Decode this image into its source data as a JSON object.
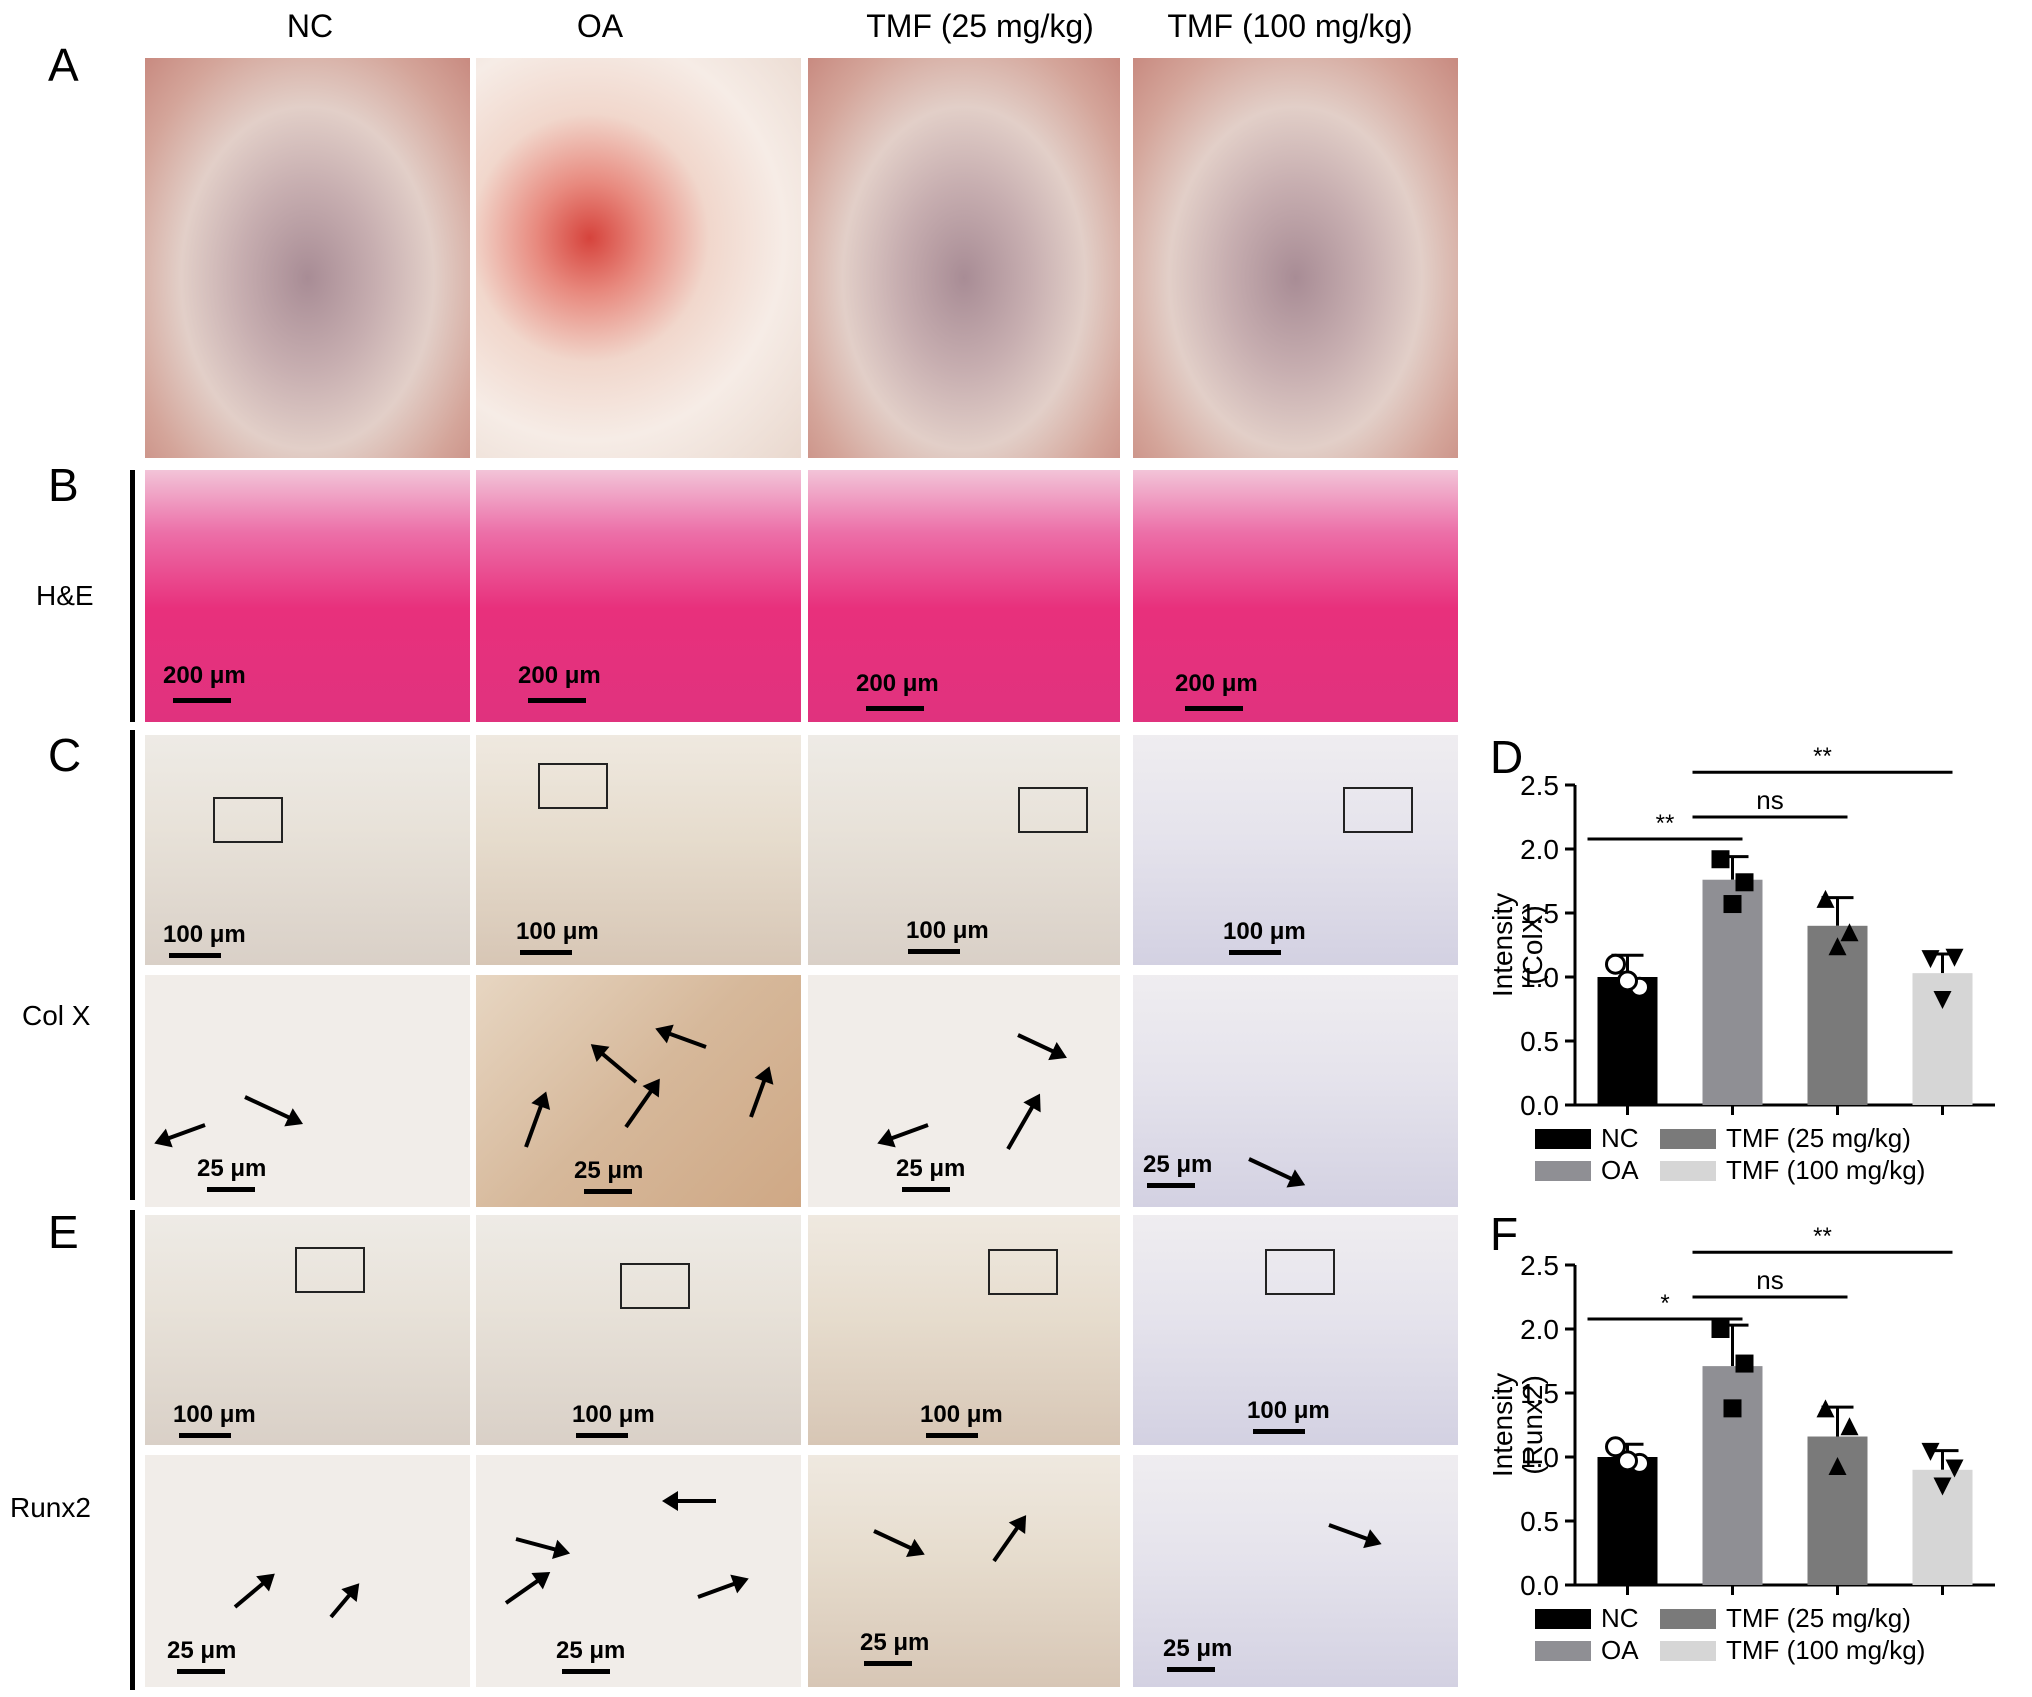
{
  "column_headers": [
    "NC",
    "OA",
    "TMF (25 mg/kg)",
    "TMF (100 mg/kg)"
  ],
  "panel_letters": {
    "A": "A",
    "B": "B",
    "C": "C",
    "D": "D",
    "E": "E",
    "F": "F"
  },
  "row_labels": {
    "he": "H&E",
    "colx": "Col X",
    "runx2": "Runx2"
  },
  "scale_bars": {
    "he": "200 μm",
    "overview": "100 μm",
    "zoom": "25 μm"
  },
  "chart_data": [
    {
      "panel": "D",
      "type": "bar",
      "ylabel_line1": "Intensity",
      "ylabel_line2": "(ColX)",
      "ylim": [
        0,
        2.5
      ],
      "yticks": [
        "0.0",
        "0.5",
        "1.0",
        "1.5",
        "2.0",
        "2.5"
      ],
      "categories": [
        "NC",
        "OA",
        "TMF (25 mg/kg)",
        "TMF (100 mg/kg)"
      ],
      "values": [
        1.0,
        1.76,
        1.4,
        1.03
      ],
      "errors": [
        0.17,
        0.18,
        0.22,
        0.15
      ],
      "points": [
        [
          1.1,
          0.92,
          0.97
        ],
        [
          1.92,
          1.74,
          1.57
        ],
        [
          1.61,
          1.35,
          1.24
        ],
        [
          1.14,
          1.15,
          0.82
        ]
      ],
      "markers": [
        "circle",
        "square",
        "triangle-up",
        "triangle-down"
      ],
      "colors": [
        "#000000",
        "#8f8f94",
        "#7a7a7a",
        "#d6d6d6"
      ],
      "comparisons": [
        {
          "from": 0,
          "to": 1,
          "label": "**"
        },
        {
          "from": 1,
          "to": 2,
          "label": "ns"
        },
        {
          "from": 1,
          "to": 3,
          "label": "**"
        }
      ],
      "legend": [
        "NC",
        "OA",
        "TMF (25 mg/kg)",
        "TMF (100 mg/kg)"
      ]
    },
    {
      "panel": "F",
      "type": "bar",
      "ylabel_line1": "Intensity",
      "ylabel_line2": "(Runx2)",
      "ylim": [
        0,
        2.5
      ],
      "yticks": [
        "0.0",
        "0.5",
        "1.0",
        "1.5",
        "2.0",
        "2.5"
      ],
      "categories": [
        "NC",
        "OA",
        "TMF (25 mg/kg)",
        "TMF (100 mg/kg)"
      ],
      "values": [
        1.0,
        1.71,
        1.16,
        0.9
      ],
      "errors": [
        0.1,
        0.32,
        0.23,
        0.15
      ],
      "points": [
        [
          1.08,
          0.95,
          0.97
        ],
        [
          2.0,
          1.73,
          1.38
        ],
        [
          1.38,
          1.24,
          0.93
        ],
        [
          1.04,
          0.91,
          0.77
        ]
      ],
      "markers": [
        "circle",
        "square",
        "triangle-up",
        "triangle-down"
      ],
      "colors": [
        "#000000",
        "#8f8f94",
        "#7a7a7a",
        "#d6d6d6"
      ],
      "comparisons": [
        {
          "from": 0,
          "to": 1,
          "label": "*"
        },
        {
          "from": 1,
          "to": 2,
          "label": "ns"
        },
        {
          "from": 1,
          "to": 3,
          "label": "**"
        }
      ],
      "legend": [
        "NC",
        "OA",
        "TMF (25 mg/kg)",
        "TMF (100 mg/kg)"
      ]
    }
  ]
}
